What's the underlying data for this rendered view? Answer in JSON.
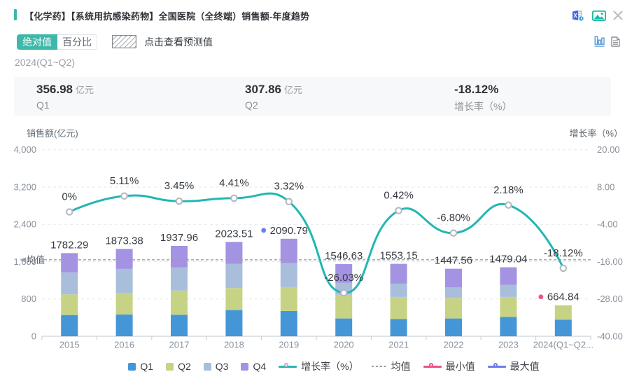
{
  "accent_color": "#3eb8a8",
  "header": {
    "title": "【化学药】【系统用抗感染药物】全国医院（全终端）销售额-年度趋势",
    "icons": {
      "export_excel": "excel-export-icon",
      "export_image": "image-export-icon",
      "close": "close-icon",
      "bar_view": "bar-chart-view-icon",
      "report_view": "report-doc-icon"
    }
  },
  "toolbar": {
    "absolute_label": "绝对值",
    "percent_label": "百分比",
    "forecast_label": "点击查看预测值"
  },
  "period": "2024(Q1~Q2)",
  "stats": [
    {
      "value": "356.98",
      "unit": "亿元",
      "label": "Q1"
    },
    {
      "value": "307.86",
      "unit": "亿元",
      "label": "Q2"
    },
    {
      "value": "-18.12%",
      "unit": "",
      "label": "增长率（%）"
    }
  ],
  "chart_data": {
    "type": "bar+line",
    "title": "",
    "ylabel": "销售额(亿元)",
    "y2label": "增长率（%）",
    "ylim": [
      0,
      4000
    ],
    "y2lim": [
      -40,
      20
    ],
    "yticks": [
      "4,000",
      "3,200",
      "2,400",
      "1,600",
      "800",
      "0"
    ],
    "y2ticks": [
      "20.00",
      "8.00",
      "-4.00",
      "-16.00",
      "-28.00",
      "-40.00"
    ],
    "grid": true,
    "legend_position": "bottom",
    "categories": [
      "2015",
      "2016",
      "2017",
      "2018",
      "2019",
      "2020",
      "2021",
      "2022",
      "2023",
      "2024(Q1~Q2..."
    ],
    "series": [
      {
        "name": "Q1",
        "stack": true,
        "color": "#4596d7",
        "values": [
          455.1,
          468.7,
          461.1,
          561.8,
          542.2,
          381.5,
          368.0,
          381.5,
          414.6,
          356.98
        ]
      },
      {
        "name": "Q2",
        "stack": true,
        "color": "#c6d385",
        "values": [
          443.1,
          462.6,
          518.2,
          471.7,
          510.7,
          507.7,
          474.7,
          440.1,
          428.1,
          307.86
        ]
      },
      {
        "name": "Q3",
        "stack": true,
        "color": "#a9bedb",
        "values": [
          471.7,
          512.2,
          498.7,
          518.2,
          518.2,
          258.4,
          285.4,
          225.3,
          258.4,
          0
        ]
      },
      {
        "name": "Q4",
        "stack": true,
        "color": "#a492e2",
        "values": [
          412.39,
          429.88,
          459.96,
          471.81,
          519.69,
          399.03,
          425.05,
          400.66,
          377.94,
          0
        ]
      }
    ],
    "totals": [
      "1782.29",
      "1873.38",
      "1937.96",
      "2023.51",
      "2090.79",
      "1546.63",
      "1553.15",
      "1447.56",
      "1479.04",
      "664.84"
    ],
    "growth_series": {
      "name": "增长率（%）",
      "color": "#23b7b3",
      "values": [
        0,
        5.11,
        3.45,
        4.41,
        3.32,
        -26.03,
        0.42,
        -6.8,
        2.18,
        -18.12
      ],
      "labels": [
        "0%",
        "5.11%",
        "3.45%",
        "4.41%",
        "3.32%",
        "-26.03%",
        "0.42%",
        "-6.80%",
        "2.18%",
        "-18.12%"
      ]
    },
    "mean_line": {
      "label": "均值",
      "value": 1639.92,
      "color": "#9aa0a6"
    },
    "max_point": {
      "legend": "最大值",
      "category_index": 4,
      "color": "#6b7cf0"
    },
    "min_point": {
      "legend": "最小值",
      "category_index": 9,
      "color": "#f0508e"
    },
    "legend": [
      "Q1",
      "Q2",
      "Q3",
      "Q4",
      "增长率（%）",
      "均值",
      "最小值",
      "最大值"
    ],
    "marker_ring_color": "#b3b9bf",
    "label_color": "#363b41",
    "tick_color": "#8b929c",
    "gridline_color": "#e2eae8",
    "axisline_color": "#ccd2d6"
  }
}
